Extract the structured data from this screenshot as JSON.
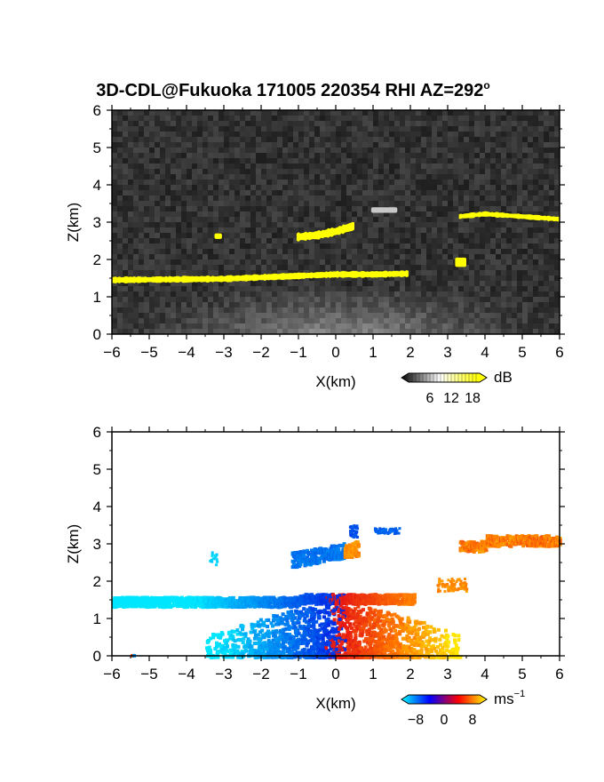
{
  "title": "3D-CDL@Fukuoka 171005 220354 RHI AZ=292",
  "title_degree": "o",
  "chart_data": [
    {
      "type": "heatmap",
      "panel": "reflectivity",
      "xlabel": "X(km)",
      "ylabel": "Z(km)",
      "xlim": [
        -6,
        6
      ],
      "ylim": [
        0,
        6
      ],
      "xticks": [
        -6,
        -5,
        -4,
        -3,
        -2,
        -1,
        0,
        1,
        2,
        3,
        4,
        5,
        6
      ],
      "yticks": [
        0,
        1,
        2,
        3,
        4,
        5,
        6
      ],
      "background": "grayscale noise",
      "colorbar": {
        "unit": "dB",
        "ticks": [
          6,
          12,
          18
        ],
        "range": [
          0,
          20
        ],
        "colors": [
          "#000000",
          "#ffffff",
          "#ffff00"
        ]
      },
      "features": [
        {
          "kind": "layer",
          "value_db": 20,
          "points": [
            [
              -6.0,
              1.45
            ],
            [
              -3.0,
              1.48
            ],
            [
              0.0,
              1.6
            ],
            [
              1.0,
              1.6
            ],
            [
              1.95,
              1.62
            ]
          ],
          "thickness_km": 0.16
        },
        {
          "kind": "layer",
          "value_db": 20,
          "points": [
            [
              -1.05,
              2.6
            ],
            [
              -0.5,
              2.65
            ],
            [
              0.0,
              2.75
            ],
            [
              0.5,
              2.9
            ]
          ],
          "thickness_km": 0.22
        },
        {
          "kind": "layer",
          "value_db": 20,
          "points": [
            [
              3.3,
              3.15
            ],
            [
              4.0,
              3.22
            ],
            [
              5.0,
              3.15
            ],
            [
              6.0,
              3.08
            ]
          ],
          "thickness_km": 0.13
        },
        {
          "kind": "patch",
          "value_db": 20,
          "x": [
            3.2,
            3.5
          ],
          "z": [
            1.8,
            2.05
          ]
        },
        {
          "kind": "patch",
          "value_db": 19,
          "x": [
            -3.25,
            -3.05
          ],
          "z": [
            2.55,
            2.7
          ]
        },
        {
          "kind": "patch",
          "value_db": 12,
          "x": [
            0.95,
            1.65
          ],
          "z": [
            3.25,
            3.4
          ]
        }
      ]
    },
    {
      "type": "heatmap",
      "panel": "doppler_velocity",
      "xlabel": "X(km)",
      "ylabel": "Z(km)",
      "xlim": [
        -6,
        6
      ],
      "ylim": [
        0,
        6
      ],
      "xticks": [
        -6,
        -5,
        -4,
        -3,
        -2,
        -1,
        0,
        1,
        2,
        3,
        4,
        5,
        6
      ],
      "yticks": [
        0,
        1,
        2,
        3,
        4,
        5,
        6
      ],
      "background": "white",
      "colorbar": {
        "unit": "ms",
        "unit_exponent": "-1",
        "ticks": [
          -8,
          0,
          8
        ],
        "range": [
          -10,
          10
        ],
        "colors": [
          "#00ffff",
          "#0000ff",
          "#ff0000",
          "#ffff00"
        ]
      },
      "features": [
        {
          "kind": "layer",
          "x": [
            -6.0,
            2.1
          ],
          "z": [
            1.4,
            1.7
          ],
          "velocity": "increasing with x, ~-6 to +6"
        },
        {
          "kind": "layer",
          "x": [
            -1.2,
            0.6
          ],
          "z": [
            2.45,
            3.0
          ],
          "velocity": "-2 to +2"
        },
        {
          "kind": "patch",
          "x": [
            0.35,
            0.55
          ],
          "z": [
            3.2,
            3.55
          ],
          "velocity": -2
        },
        {
          "kind": "patch",
          "x": [
            1.0,
            1.7
          ],
          "z": [
            3.3,
            3.45
          ],
          "velocity": -4
        },
        {
          "kind": "layer",
          "x": [
            3.3,
            6.0
          ],
          "z": [
            2.9,
            3.35
          ],
          "velocity": "+2 to +7"
        },
        {
          "kind": "patch",
          "x": [
            2.7,
            3.5
          ],
          "z": [
            1.75,
            2.1
          ],
          "velocity": 6
        },
        {
          "kind": "patch",
          "x": [
            -3.4,
            -3.2
          ],
          "z": [
            2.45,
            2.8
          ],
          "velocity": -8
        },
        {
          "kind": "cloud",
          "x": [
            -3.5,
            3.3
          ],
          "z": [
            0.0,
            1.35
          ],
          "velocity": "proportional to x"
        }
      ]
    }
  ]
}
